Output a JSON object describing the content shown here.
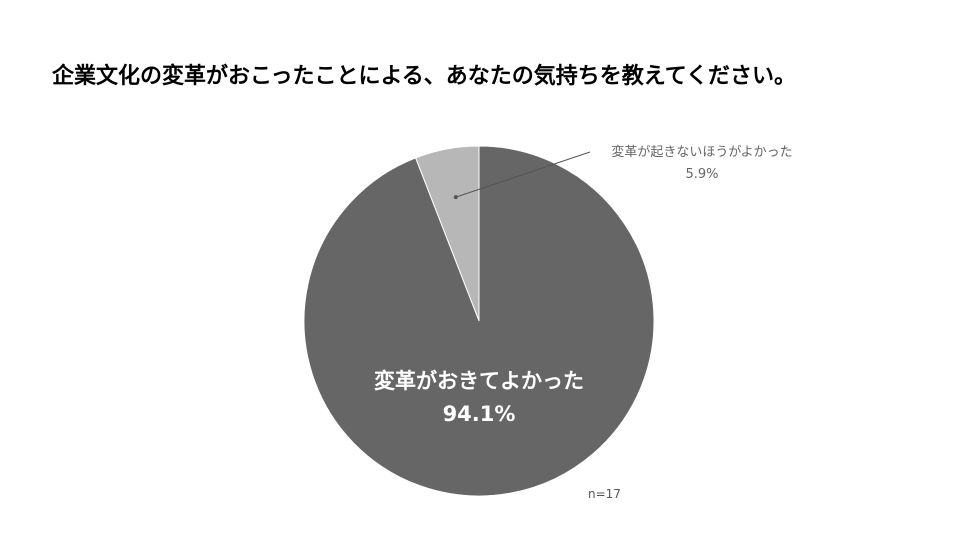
{
  "title": "企業文化の変革がおこったことによる、あなたの気持ちを教えてください。",
  "chart_data": {
    "type": "pie",
    "title": "企業文化の変革がおこったことによる、あなたの気持ちを教えてください。",
    "slices": [
      {
        "label": "変革が起きないほうがよかった",
        "value": 5.9,
        "value_label": "5.9%",
        "color": "#b7b7b7"
      },
      {
        "label": "変革がおきてよかった",
        "value": 94.1,
        "value_label": "94.1%",
        "color": "#666666"
      }
    ],
    "start_angle_deg": 0,
    "direction": "counterclockwise",
    "legend": "none",
    "note": "n=17"
  }
}
